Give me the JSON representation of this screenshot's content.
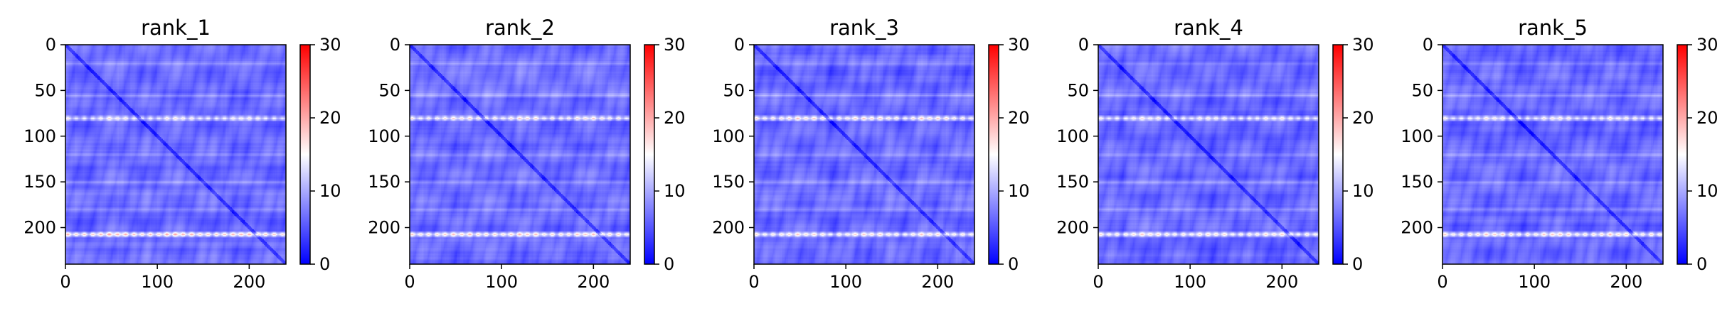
{
  "chart_data": [
    {
      "type": "heatmap",
      "title": "rank_1",
      "matrix_size": 240,
      "xlim": [
        0,
        240
      ],
      "ylim": [
        240,
        0
      ],
      "xticks": [
        0,
        100,
        200
      ],
      "yticks": [
        0,
        50,
        100,
        150,
        200
      ],
      "colorbar": {
        "range": [
          0,
          30
        ],
        "ticks": [
          0,
          10,
          20,
          30
        ],
        "colormap": [
          "#0000ff",
          "#ffffff",
          "#ff0000"
        ]
      },
      "highlight_rows": [
        {
          "at": 80,
          "value": 16
        },
        {
          "at": 207,
          "value": 19
        }
      ]
    },
    {
      "type": "heatmap",
      "title": "rank_2",
      "matrix_size": 240,
      "xlim": [
        0,
        240
      ],
      "ylim": [
        240,
        0
      ],
      "xticks": [
        0,
        100,
        200
      ],
      "yticks": [
        0,
        50,
        100,
        150,
        200
      ],
      "colorbar": {
        "range": [
          0,
          30
        ],
        "ticks": [
          0,
          10,
          20,
          30
        ],
        "colormap": [
          "#0000ff",
          "#ffffff",
          "#ff0000"
        ]
      },
      "highlight_rows": [
        {
          "at": 80,
          "value": 17
        },
        {
          "at": 207,
          "value": 18
        }
      ]
    },
    {
      "type": "heatmap",
      "title": "rank_3",
      "matrix_size": 240,
      "xlim": [
        0,
        240
      ],
      "ylim": [
        240,
        0
      ],
      "xticks": [
        0,
        100,
        200
      ],
      "yticks": [
        0,
        50,
        100,
        150,
        200
      ],
      "colorbar": {
        "range": [
          0,
          30
        ],
        "ticks": [
          0,
          10,
          20,
          30
        ],
        "colormap": [
          "#0000ff",
          "#ffffff",
          "#ff0000"
        ]
      },
      "highlight_rows": [
        {
          "at": 80,
          "value": 18
        },
        {
          "at": 207,
          "value": 17
        }
      ]
    },
    {
      "type": "heatmap",
      "title": "rank_4",
      "matrix_size": 240,
      "xlim": [
        0,
        240
      ],
      "ylim": [
        240,
        0
      ],
      "xticks": [
        0,
        100,
        200
      ],
      "yticks": [
        0,
        50,
        100,
        150,
        200
      ],
      "colorbar": {
        "range": [
          0,
          30
        ],
        "ticks": [
          0,
          10,
          20,
          30
        ],
        "colormap": [
          "#0000ff",
          "#ffffff",
          "#ff0000"
        ]
      },
      "highlight_rows": [
        {
          "at": 80,
          "value": 16
        },
        {
          "at": 207,
          "value": 17
        }
      ]
    },
    {
      "type": "heatmap",
      "title": "rank_5",
      "matrix_size": 240,
      "xlim": [
        0,
        240
      ],
      "ylim": [
        240,
        0
      ],
      "xticks": [
        0,
        100,
        200
      ],
      "yticks": [
        0,
        50,
        100,
        150,
        200
      ],
      "colorbar": {
        "range": [
          0,
          30
        ],
        "ticks": [
          0,
          10,
          20,
          30
        ],
        "colormap": [
          "#0000ff",
          "#ffffff",
          "#ff0000"
        ]
      },
      "highlight_rows": [
        {
          "at": 80,
          "value": 16
        },
        {
          "at": 207,
          "value": 18
        }
      ]
    }
  ]
}
